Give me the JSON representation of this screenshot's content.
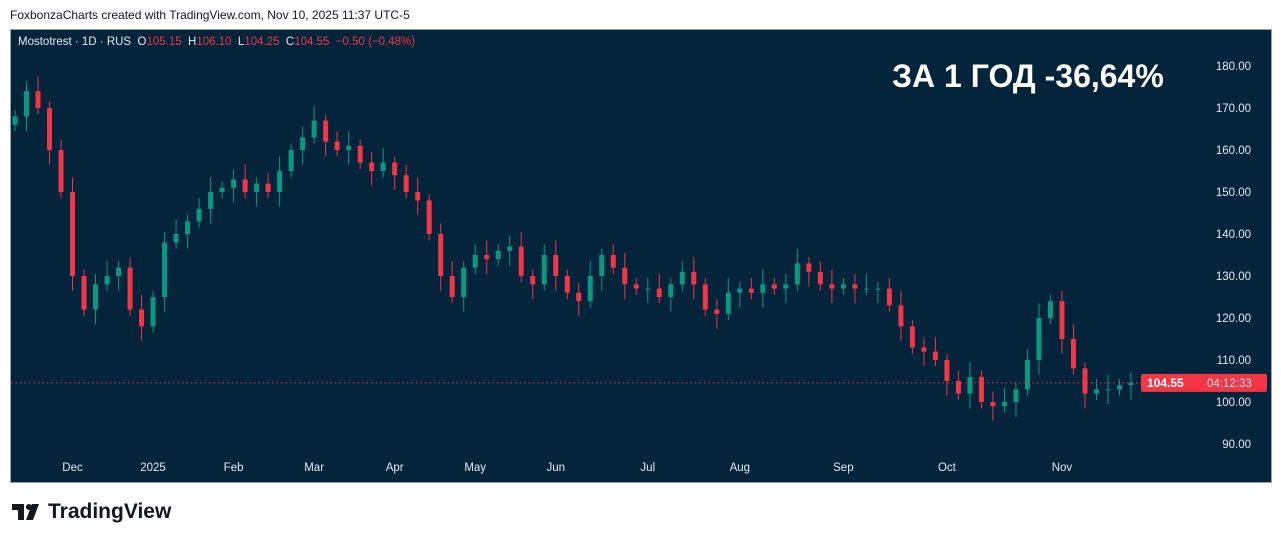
{
  "credit": "FoxbonzaCharts created with TradingView.com, Nov 10, 2025 11:37 UTC-5",
  "legend": {
    "symbol": "Mostotrest · 1D · RUS",
    "o_label": "O",
    "o": "105.15",
    "h_label": "H",
    "h": "106.10",
    "l_label": "L",
    "l": "104.25",
    "c_label": "C",
    "c": "104.55",
    "change": "−0.50 (−0.48%)"
  },
  "headline": "ЗА 1 ГОД -36,64%",
  "price_label": {
    "price": "104.55",
    "countdown": "04:12:33"
  },
  "brand": "TradingView",
  "colors": {
    "up": "#089981",
    "down": "#f23645",
    "bg": "#03243a"
  },
  "chart_data": {
    "type": "candlestick",
    "title": "Mostotrest · 1D · RUS",
    "ylim": [
      85,
      185
    ],
    "y_ticks": [
      90,
      100,
      110,
      120,
      130,
      140,
      150,
      160,
      170,
      180
    ],
    "y_tick_labels": [
      "90.00",
      "100.00",
      "110.00",
      "120.00",
      "130.00",
      "140.00",
      "150.00",
      "160.00",
      "170.00",
      "180.00"
    ],
    "x_ticks": [
      {
        "label": "Dec",
        "i": 5
      },
      {
        "label": "2025",
        "i": 12
      },
      {
        "label": "Feb",
        "i": 19
      },
      {
        "label": "Mar",
        "i": 26
      },
      {
        "label": "Apr",
        "i": 33
      },
      {
        "label": "May",
        "i": 40
      },
      {
        "label": "Jun",
        "i": 47
      },
      {
        "label": "Jul",
        "i": 55
      },
      {
        "label": "Aug",
        "i": 63
      },
      {
        "label": "Sep",
        "i": 72
      },
      {
        "label": "Oct",
        "i": 81
      },
      {
        "label": "Nov",
        "i": 91
      }
    ],
    "first_open": 166,
    "closes": [
      168,
      174,
      170,
      160,
      150,
      130,
      122,
      128,
      130,
      132,
      122,
      118,
      125,
      138,
      140,
      143,
      146,
      150,
      151,
      153,
      150,
      152,
      150,
      155,
      160,
      163,
      167,
      162,
      160,
      161,
      157,
      155,
      157,
      154,
      150,
      148,
      140,
      130,
      125,
      132,
      135,
      134,
      136,
      137,
      130,
      128,
      135,
      130,
      126,
      124,
      130,
      135,
      132,
      128,
      127,
      127,
      125,
      128,
      131,
      128,
      122,
      121,
      126,
      127,
      126,
      128,
      127,
      128,
      133,
      131,
      128,
      127,
      128,
      127,
      127,
      127,
      123,
      118,
      113,
      112,
      110,
      105,
      102,
      106,
      100,
      99,
      100,
      103,
      110,
      120,
      124,
      115,
      108,
      102,
      103,
      103,
      104,
      104.55
    ],
    "last_price": 104.55
  }
}
